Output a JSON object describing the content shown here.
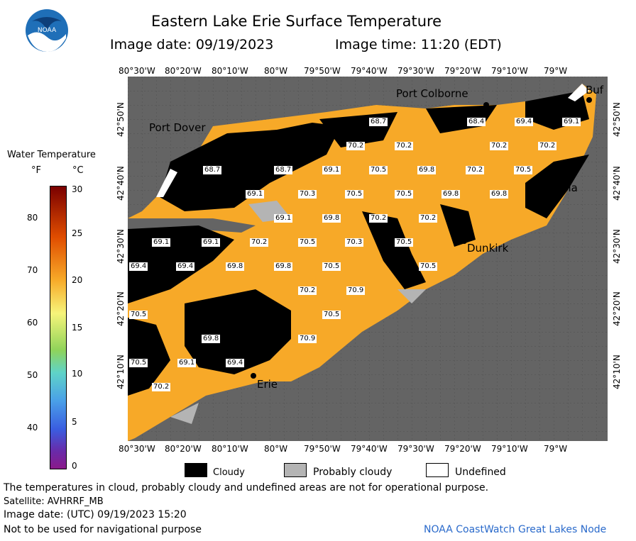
{
  "header": {
    "title": "Eastern Lake Erie Surface Temperature",
    "image_date_label": "Image date: 09/19/2023",
    "image_time_label": "Image time: 11:20 (EDT)"
  },
  "logo": {
    "text": "NOAA"
  },
  "colors": {
    "land": "#646464",
    "water_warm": "#f7a928",
    "cloud": "#000000",
    "probably_cloudy": "#b4b4b4",
    "undefined": "#ffffff"
  },
  "axes": {
    "top_lon": [
      "80°30'W",
      "80°20'W",
      "80°10'W",
      "80°W",
      "79°50'W",
      "79°40'W",
      "79°30'W",
      "79°20'W",
      "79°10'W",
      "79°W"
    ],
    "bottom_lon": [
      "80°30'W",
      "80°20'W",
      "80°10'W",
      "80°W",
      "79°50'W",
      "79°40'W",
      "79°30'W",
      "79°20'W",
      "79°10'W",
      "79°W"
    ],
    "lat": [
      "42°50'N",
      "42°40'N",
      "42°30'N",
      "42°20'N",
      "42°10'N"
    ]
  },
  "cities": [
    "Port Dover",
    "Port Colborne",
    "Buf",
    "Angola",
    "Dunkirk",
    "Erie"
  ],
  "temps": [
    "68.7",
    "68.4",
    "69.4",
    "69.1",
    "70.2",
    "70.2",
    "70.2",
    "70.2",
    "68.7",
    "68.7",
    "69.1",
    "70.5",
    "69.8",
    "70.2",
    "70.5",
    "69.1",
    "70.3",
    "70.5",
    "70.5",
    "69.8",
    "69.8",
    "69.1",
    "69.8",
    "70.2",
    "70.2",
    "69.1",
    "69.1",
    "70.2",
    "70.5",
    "70.3",
    "70.5",
    "69.4",
    "69.4",
    "69.8",
    "69.8",
    "70.5",
    "70.5",
    "70.2",
    "70.9",
    "70.5",
    "70.5",
    "69.8",
    "70.9",
    "70.5",
    "69.1",
    "69.4",
    "70.2"
  ],
  "legend": {
    "title": "Water Temperature",
    "unit_f": "°F",
    "unit_c": "°C",
    "f_ticks": [
      "80",
      "70",
      "60",
      "50",
      "40"
    ],
    "c_ticks": [
      "30",
      "25",
      "20",
      "15",
      "10",
      "5",
      "0"
    ]
  },
  "key": {
    "cloudy": "Cloudy",
    "probably_cloudy": "Probably cloudy",
    "undefined": "Undefined"
  },
  "footer": {
    "note": "The temperatures in cloud, probably cloudy and undefined areas are not for operational purpose.",
    "satellite": "Satellite: AVHRRF_MB",
    "image_date_utc": "Image date: (UTC) 09/19/2023  15:20",
    "nav": "Not to be used for navigational purpose",
    "credit": "NOAA CoastWatch Great Lakes Node"
  }
}
